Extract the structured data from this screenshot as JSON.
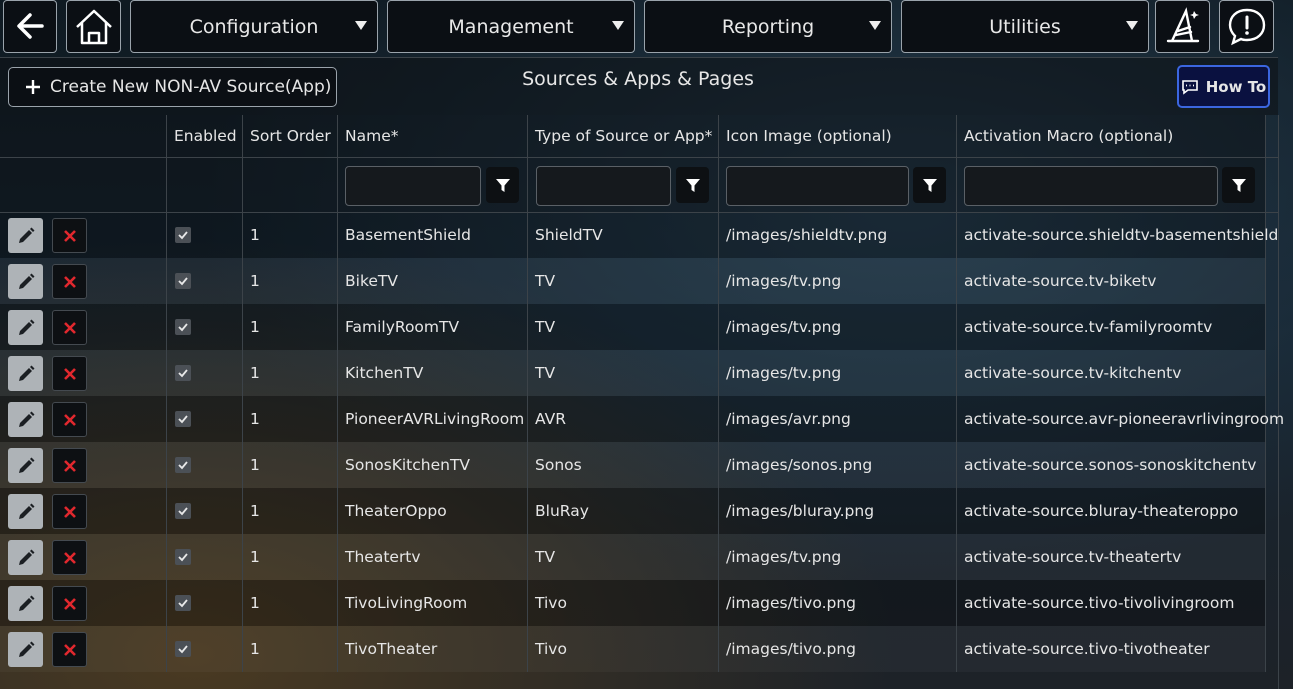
{
  "nav": {
    "menus": [
      "Configuration",
      "Management",
      "Reporting",
      "Utilities"
    ]
  },
  "toolbar": {
    "create_button": "Create New NON-AV Source(App)",
    "title": "Sources & Apps & Pages",
    "how_to": "How To"
  },
  "table": {
    "columns": [
      "Enabled",
      "Sort Order",
      "Name*",
      "Type of Source or App*",
      "Icon Image (optional)",
      "Activation Macro (optional)"
    ],
    "rows": [
      [
        true,
        1,
        "BasementShield",
        "ShieldTV",
        "/images/shieldtv.png",
        "activate-source.shieldtv-basementshield"
      ],
      [
        true,
        1,
        "BikeTV",
        "TV",
        "/images/tv.png",
        "activate-source.tv-biketv"
      ],
      [
        true,
        1,
        "FamilyRoomTV",
        "TV",
        "/images/tv.png",
        "activate-source.tv-familyroomtv"
      ],
      [
        true,
        1,
        "KitchenTV",
        "TV",
        "/images/tv.png",
        "activate-source.tv-kitchentv"
      ],
      [
        true,
        1,
        "PioneerAVRLivingRoom",
        "AVR",
        "/images/avr.png",
        "activate-source.avr-pioneeravrlivingroom"
      ],
      [
        true,
        1,
        "SonosKitchenTV",
        "Sonos",
        "/images/sonos.png",
        "activate-source.sonos-sonoskitchentv"
      ],
      [
        true,
        1,
        "TheaterOppo",
        "BluRay",
        "/images/bluray.png",
        "activate-source.bluray-theateroppo"
      ],
      [
        true,
        1,
        "Theatertv",
        "TV",
        "/images/tv.png",
        "activate-source.tv-theatertv"
      ],
      [
        true,
        1,
        "TivoLivingRoom",
        "Tivo",
        "/images/tivo.png",
        "activate-source.tivo-tivolivingroom"
      ],
      [
        true,
        1,
        "TivoTheater",
        "Tivo",
        "/images/tivo.png",
        "activate-source.tivo-tivotheater"
      ]
    ]
  }
}
